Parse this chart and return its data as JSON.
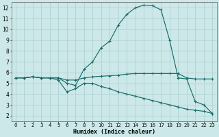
{
  "xlabel": "Humidex (Indice chaleur)",
  "background_color": "#cce8e8",
  "grid_color": "#aacece",
  "line_color": "#1a6b6b",
  "xlim": [
    -0.5,
    23.5
  ],
  "ylim": [
    1.5,
    12.5
  ],
  "xticks": [
    0,
    1,
    2,
    3,
    4,
    5,
    6,
    7,
    8,
    9,
    10,
    11,
    12,
    13,
    14,
    15,
    16,
    17,
    18,
    19,
    20,
    21,
    22,
    23
  ],
  "yticks": [
    2,
    3,
    4,
    5,
    6,
    7,
    8,
    9,
    10,
    11,
    12
  ],
  "line1_x": [
    0,
    1,
    2,
    3,
    4,
    5,
    6,
    7,
    8,
    9,
    10,
    11,
    12,
    13,
    14,
    15,
    16,
    17,
    18,
    19,
    20,
    21,
    22,
    23
  ],
  "line1_y": [
    5.5,
    5.5,
    5.6,
    5.5,
    5.5,
    5.5,
    5.0,
    4.8,
    6.3,
    7.0,
    8.3,
    8.9,
    10.4,
    11.4,
    12.0,
    12.25,
    12.2,
    11.8,
    9.0,
    5.5,
    5.4,
    3.3,
    3.0,
    2.2
  ],
  "line2_x": [
    0,
    1,
    2,
    3,
    4,
    5,
    6,
    7,
    8,
    9,
    10,
    11,
    12,
    13,
    14,
    15,
    16,
    17,
    18,
    19,
    20,
    21,
    22,
    23
  ],
  "line2_y": [
    5.5,
    5.5,
    5.6,
    5.5,
    5.5,
    5.5,
    5.3,
    5.3,
    5.5,
    5.6,
    5.65,
    5.7,
    5.75,
    5.85,
    5.9,
    5.9,
    5.9,
    5.9,
    5.9,
    5.9,
    5.5,
    5.4,
    5.4,
    5.4
  ],
  "line3_x": [
    0,
    1,
    2,
    3,
    4,
    5,
    6,
    7,
    8,
    9,
    10,
    11,
    12,
    13,
    14,
    15,
    16,
    17,
    18,
    19,
    20,
    21,
    22,
    23
  ],
  "line3_y": [
    5.5,
    5.5,
    5.6,
    5.5,
    5.5,
    5.3,
    4.2,
    4.5,
    5.0,
    5.0,
    4.7,
    4.5,
    4.2,
    4.0,
    3.8,
    3.6,
    3.4,
    3.2,
    3.0,
    2.8,
    2.6,
    2.5,
    2.4,
    2.2
  ]
}
